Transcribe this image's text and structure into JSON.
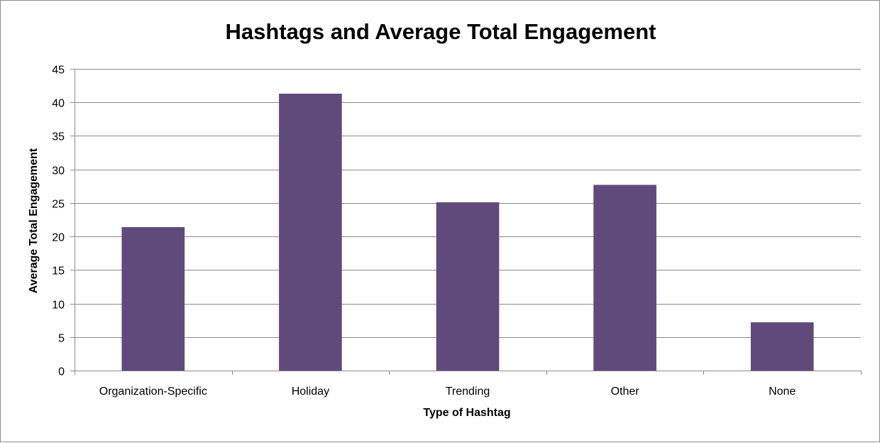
{
  "chart_data": {
    "type": "bar",
    "title": "Hashtags and Average Total Engagement",
    "xlabel": "Type of Hashtag",
    "ylabel": "Average Total Engagement",
    "categories": [
      "Organization-Specific",
      "Holiday",
      "Trending",
      "Other",
      "None"
    ],
    "values": [
      21.4,
      41.3,
      25.1,
      27.7,
      7.2
    ],
    "ylim": [
      0,
      45
    ],
    "yticks": [
      0,
      5,
      10,
      15,
      20,
      25,
      30,
      35,
      40,
      45
    ],
    "grid": true,
    "legend": "none",
    "bar_color": "#604a7b"
  }
}
